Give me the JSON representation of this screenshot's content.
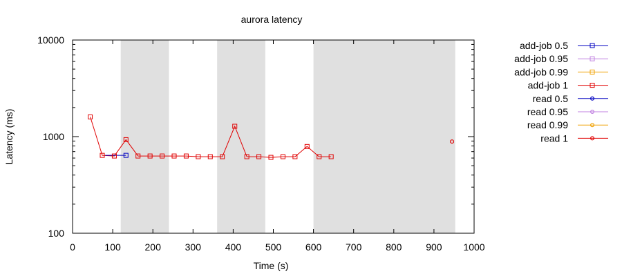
{
  "chart_data": {
    "type": "line",
    "title": "aurora latency",
    "xlabel": "Time (s)",
    "ylabel": "Latency (ms)",
    "xlim": [
      0,
      1000
    ],
    "ylim": [
      100,
      10000
    ],
    "yscale": "log",
    "x_ticks": [
      "0",
      "100",
      "200",
      "300",
      "400",
      "500",
      "600",
      "700",
      "800",
      "900",
      "1000"
    ],
    "y_ticks": [
      "100",
      "1000",
      "10000"
    ],
    "grid": false,
    "legend_position": "outside-right",
    "shaded_intervals": [
      [
        120,
        240
      ],
      [
        360,
        480
      ],
      [
        600,
        953
      ]
    ],
    "shaded_color": "#e0e0e0",
    "series": [
      {
        "name": "add-job 0.5",
        "color": "#0000c0",
        "marker": "square",
        "points": [
          [
            133,
            640
          ]
        ]
      },
      {
        "name": "add-job 0.95",
        "color": "#c080e0",
        "marker": "square",
        "points": []
      },
      {
        "name": "add-job 0.99",
        "color": "#f0a000",
        "marker": "square",
        "points": []
      },
      {
        "name": "add-job 1",
        "color": "#e00000",
        "marker": "square",
        "points": [
          [
            44,
            1600
          ],
          [
            74,
            640
          ],
          [
            104,
            630
          ],
          [
            133,
            930
          ],
          [
            163,
            630
          ],
          [
            193,
            630
          ],
          [
            223,
            630
          ],
          [
            253,
            630
          ],
          [
            283,
            630
          ],
          [
            313,
            620
          ],
          [
            343,
            620
          ],
          [
            373,
            620
          ],
          [
            404,
            1280
          ],
          [
            434,
            620
          ],
          [
            464,
            620
          ],
          [
            494,
            610
          ],
          [
            524,
            620
          ],
          [
            554,
            620
          ],
          [
            584,
            790
          ],
          [
            614,
            620
          ],
          [
            644,
            620
          ]
        ]
      },
      {
        "name": "read 0.5",
        "color": "#0000c0",
        "marker": "circle",
        "points": []
      },
      {
        "name": "read 0.95",
        "color": "#c080e0",
        "marker": "circle",
        "points": []
      },
      {
        "name": "read 0.99",
        "color": "#f0a000",
        "marker": "circle",
        "points": []
      },
      {
        "name": "read 1",
        "color": "#e00000",
        "marker": "circle",
        "points": [
          [
            945,
            890
          ]
        ]
      }
    ]
  }
}
